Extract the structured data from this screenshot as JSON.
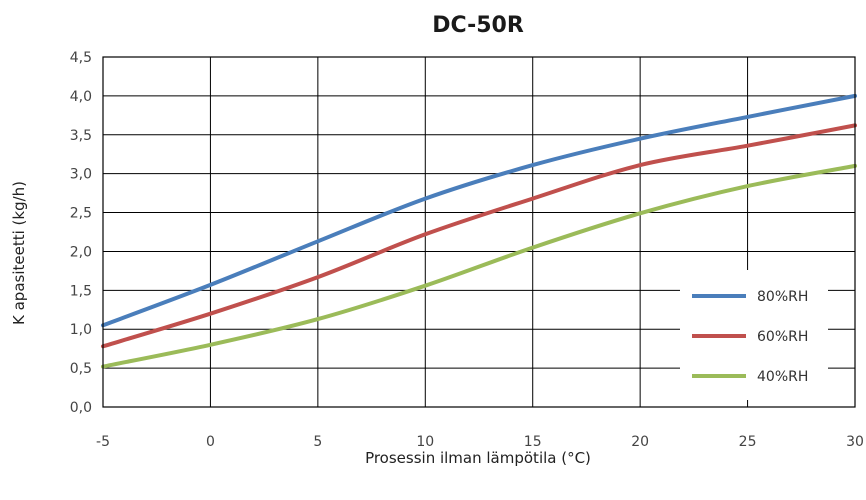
{
  "chart_data": {
    "type": "line",
    "title": "DC-50R",
    "xlabel": "Prosessin ilman lämpötila (°C)",
    "ylabel": "K apasiteetti (kg/h)",
    "xlim": [
      -5,
      30
    ],
    "ylim": [
      0,
      4.5
    ],
    "x_ticks": [
      "-5",
      "0",
      "5",
      "10",
      "15",
      "20",
      "25",
      "30"
    ],
    "y_ticks": [
      "0,0",
      "0,5",
      "1,0",
      "1,5",
      "2,0",
      "2,5",
      "3,0",
      "3,5",
      "4,0",
      "4,5"
    ],
    "grid": true,
    "legend_position": "bottom-right",
    "series": [
      {
        "name": "80%RH",
        "color": "#4a7ebb",
        "x": [
          -5,
          0,
          5,
          10,
          15,
          20,
          25,
          30
        ],
        "y": [
          1.05,
          1.57,
          2.13,
          2.68,
          3.11,
          3.45,
          3.73,
          4.0
        ]
      },
      {
        "name": "60%RH",
        "color": "#c0504d",
        "x": [
          -5,
          0,
          5,
          10,
          15,
          20,
          25,
          30
        ],
        "y": [
          0.78,
          1.2,
          1.67,
          2.22,
          2.68,
          3.11,
          3.36,
          3.62
        ]
      },
      {
        "name": "40%RH",
        "color": "#9bbb59",
        "x": [
          -5,
          0,
          5,
          10,
          15,
          20,
          25,
          30
        ],
        "y": [
          0.52,
          0.8,
          1.13,
          1.56,
          2.05,
          2.49,
          2.84,
          3.1
        ]
      }
    ]
  }
}
